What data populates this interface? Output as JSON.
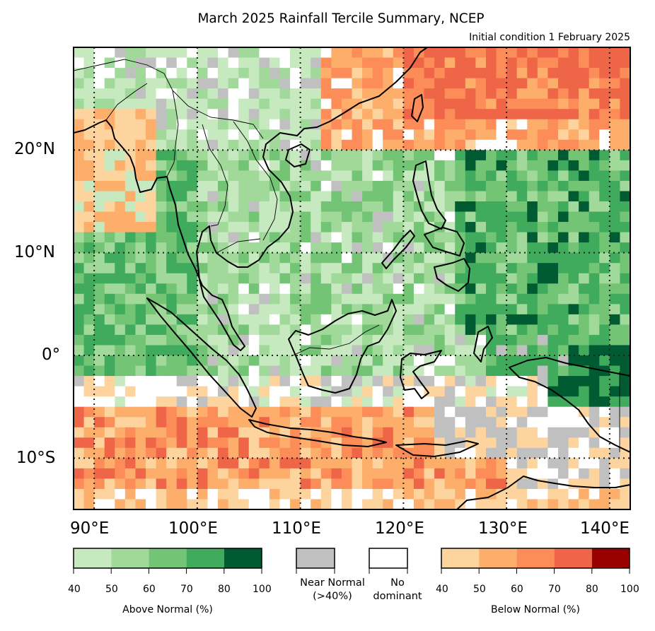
{
  "title": "March 2025 Rainfall Tercile Summary, NCEP",
  "subtitle": "Initial condition 1 February 2025",
  "map": {
    "region": "Southeast Asia",
    "lon_range": [
      88,
      142
    ],
    "lat_range": [
      -15,
      30
    ],
    "gridlines_dotted": true,
    "lon_ticks": [
      "90°E",
      "100°E",
      "110°E",
      "120°E",
      "130°E",
      "140°E"
    ],
    "lat_ticks": [
      "20°N",
      "10°N",
      "0°",
      "10°S"
    ],
    "background_categories": [
      "above-normal",
      "near-normal",
      "no-dominant",
      "below-normal"
    ]
  },
  "legend": {
    "above_normal": {
      "title": "Above Normal (%)",
      "ticks": [
        "40",
        "50",
        "60",
        "70",
        "80",
        "100"
      ],
      "colors": [
        "#c7e9c0",
        "#a1d99b",
        "#74c476",
        "#41ab5d",
        "#005a32"
      ]
    },
    "near_normal": {
      "label_line1": "Near Normal",
      "label_line2": "(>40%)",
      "color": "#c0c0c0"
    },
    "no_dominant": {
      "label_line1": "No",
      "label_line2": "dominant",
      "color": "#ffffff"
    },
    "below_normal": {
      "title": "Below Normal (%)",
      "ticks": [
        "40",
        "50",
        "60",
        "70",
        "80",
        "100"
      ],
      "colors": [
        "#fdd49e",
        "#fdae6b",
        "#fc8d59",
        "#ef6548",
        "#990000"
      ]
    }
  }
}
